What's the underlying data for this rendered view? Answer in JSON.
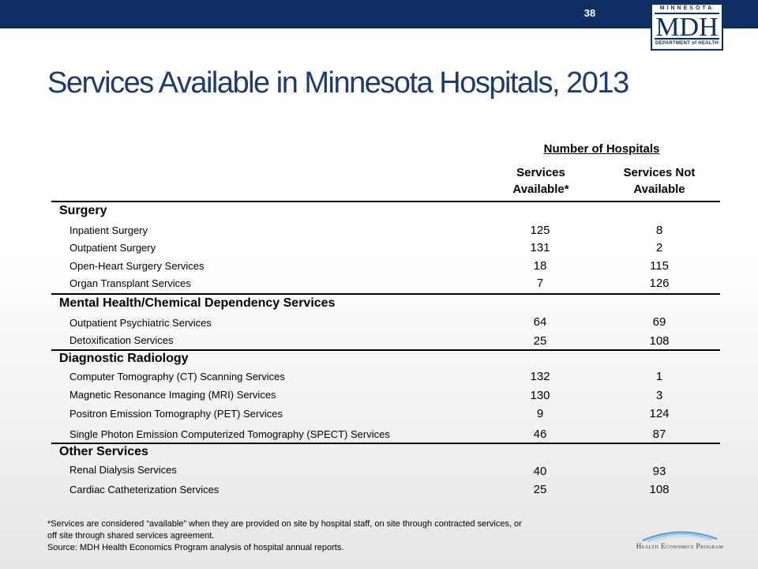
{
  "header": {
    "slide_number": "38",
    "logo": {
      "state": "MINNESOTA",
      "acronym": "MDH",
      "subtitle": "DEPARTMENT of HEALTH"
    }
  },
  "title": "Services Available in Minnesota Hospitals, 2013",
  "table": {
    "group_header": "Number of Hospitals",
    "col1_line1": "Services",
    "col1_line2": "Available*",
    "col2_line1": "Services Not",
    "col2_line2": "Available",
    "sections": [
      {
        "name": "Surgery",
        "rows": [
          {
            "label": "Inpatient Surgery",
            "available": "125",
            "not_available": "8"
          },
          {
            "label": "Outpatient Surgery",
            "available": "131",
            "not_available": "2"
          },
          {
            "label": "Open-Heart Surgery Services",
            "available": "18",
            "not_available": "115"
          },
          {
            "label": "Organ Transplant Services",
            "available": "7",
            "not_available": "126"
          }
        ]
      },
      {
        "name": "Mental Health/Chemical Dependency Services",
        "rows": [
          {
            "label": "Outpatient Psychiatric Services",
            "available": "64",
            "not_available": "69"
          },
          {
            "label": "Detoxification Services",
            "available": "25",
            "not_available": "108"
          }
        ]
      },
      {
        "name": "Diagnostic Radiology",
        "rows": [
          {
            "label": "Computer Tomography (CT) Scanning Services",
            "available": "132",
            "not_available": "1"
          },
          {
            "label": "Magnetic Resonance Imaging (MRI) Services",
            "available": "130",
            "not_available": "3"
          },
          {
            "label": "Positron Emission Tomography (PET) Services",
            "available": "9",
            "not_available": "124"
          },
          {
            "label": "Single Photon Emission Computerized Tomography (SPECT) Services",
            "available": "46",
            "not_available": "87"
          }
        ]
      },
      {
        "name": "Other Services",
        "rows": [
          {
            "label": "Renal Dialysis Services",
            "available": "40",
            "not_available": "93"
          },
          {
            "label": "Cardiac Catheterization Services",
            "available": "25",
            "not_available": "108"
          }
        ]
      }
    ]
  },
  "footnote": {
    "line1": "*Services are considered “available” when they are provided on site by hospital staff, on site through contracted services, or",
    "line2": "off site through shared services agreement.",
    "source": "Source:  MDH Health Economics Program analysis of hospital annual reports."
  },
  "footer_logo": {
    "text": "Health Economics Program"
  },
  "colors": {
    "navy": "#0e2f63",
    "title": "#1f3a6e",
    "swoosh": "#5a9bd5"
  }
}
